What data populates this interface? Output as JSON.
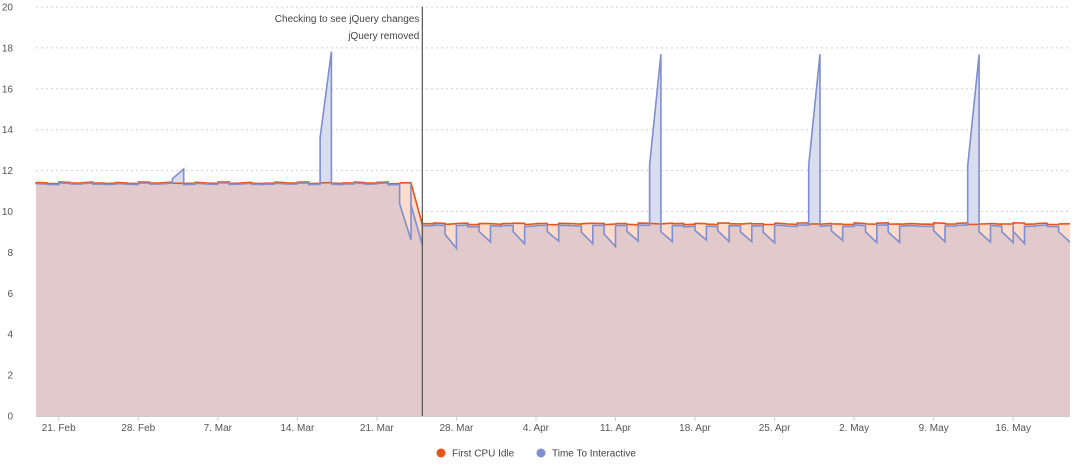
{
  "chart_data": {
    "type": "area",
    "ylim": [
      0,
      20
    ],
    "y_ticks": [
      "0",
      "2",
      "4",
      "6",
      "8",
      "10",
      "12",
      "14",
      "16",
      "18",
      "20"
    ],
    "x_ticks": [
      "21. Feb",
      "28. Feb",
      "7. Mar",
      "14. Mar",
      "21. Mar",
      "28. Mar",
      "4. Apr",
      "11. Apr",
      "18. Apr",
      "25. Apr",
      "2. May",
      "9. May",
      "16. May"
    ],
    "grid": "dashed horizontal",
    "legend_position": "bottom-center",
    "annotations": {
      "line1": "Checking to see jQuery changes",
      "line2": "jQuery removed",
      "date": "2019-03-25"
    },
    "start_date": "2019-02-19",
    "end_date": "2019-05-21",
    "series": [
      {
        "name": "First CPU Idle",
        "color": "#e8541c",
        "fill": "#fbd9c8",
        "segments": [
          {
            "from": "2019-02-19",
            "to": "2019-03-24",
            "value": 11.4
          },
          {
            "from": "2019-03-25",
            "to": "2019-05-21",
            "value": 9.4
          }
        ]
      },
      {
        "name": "Time To Interactive",
        "color": "#7f8fcf",
        "fill": "#d6dcef",
        "segments": [
          {
            "from": "2019-02-19",
            "to": "2019-03-24",
            "value": 11.35
          },
          {
            "from": "2019-03-25",
            "to": "2019-05-21",
            "value": 9.3
          }
        ],
        "spikes": [
          {
            "date": "2019-03-04",
            "value": 12.1
          },
          {
            "date": "2019-03-17",
            "value": 17.8
          },
          {
            "date": "2019-04-15",
            "value": 17.7
          },
          {
            "date": "2019-04-29",
            "value": 17.7
          },
          {
            "date": "2019-05-13",
            "value": 17.7
          }
        ],
        "dips": [
          {
            "date": "2019-03-24",
            "value": 8.6
          },
          {
            "date": "2019-03-25",
            "value": 8.4
          },
          {
            "date": "2019-03-28",
            "value": 8.2
          },
          {
            "date": "2019-03-31",
            "value": 8.5
          },
          {
            "date": "2019-04-03",
            "value": 8.4
          },
          {
            "date": "2019-04-06",
            "value": 8.6
          },
          {
            "date": "2019-04-09",
            "value": 8.4
          },
          {
            "date": "2019-04-11",
            "value": 8.3
          },
          {
            "date": "2019-04-13",
            "value": 8.6
          },
          {
            "date": "2019-04-16",
            "value": 8.5
          },
          {
            "date": "2019-04-19",
            "value": 8.6
          },
          {
            "date": "2019-04-21",
            "value": 8.5
          },
          {
            "date": "2019-04-23",
            "value": 8.5
          },
          {
            "date": "2019-04-25",
            "value": 8.5
          },
          {
            "date": "2019-05-01",
            "value": 8.6
          },
          {
            "date": "2019-05-04",
            "value": 8.5
          },
          {
            "date": "2019-05-06",
            "value": 8.5
          },
          {
            "date": "2019-05-10",
            "value": 8.5
          },
          {
            "date": "2019-05-14",
            "value": 8.5
          },
          {
            "date": "2019-05-16",
            "value": 8.5
          },
          {
            "date": "2019-05-17",
            "value": 8.4
          },
          {
            "date": "2019-05-21",
            "value": 8.5
          }
        ]
      }
    ]
  }
}
